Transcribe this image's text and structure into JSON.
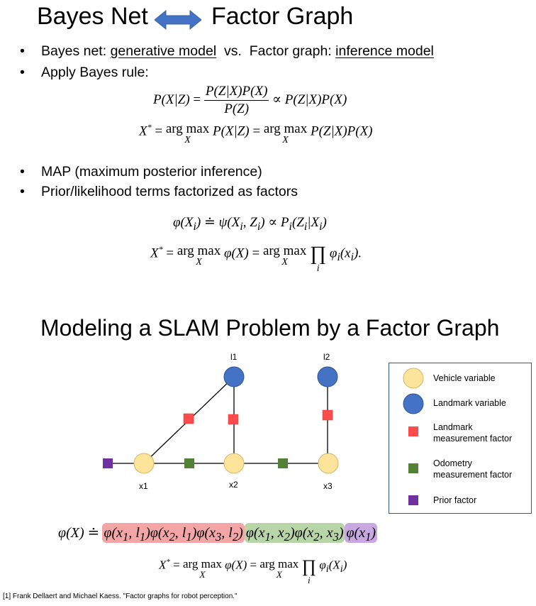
{
  "top": {
    "title_left": "Bayes Net",
    "title_right": "Factor Graph",
    "bullet1_prefix": "Bayes net: ",
    "bullet1_u1": "generative model",
    "bullet1_mid": "  vs.  Factor graph: ",
    "bullet1_u2": "inference model",
    "bullet2": "Apply Bayes rule:",
    "bullet3": "MAP (maximum posterior inference)",
    "bullet4": "Prior/likelihood terms factorized as factors"
  },
  "bottom": {
    "title": "Modeling a SLAM Problem by a Factor Graph"
  },
  "graph": {
    "labels": {
      "l1": "l1",
      "l2": "l2",
      "x1": "x1",
      "x2": "x2",
      "x3": "x3"
    }
  },
  "legend": {
    "vehicle": "Vehicle variable",
    "landmark": "Landmark variable",
    "landmark_factor_1": "Landmark",
    "landmark_factor_2": "measurement factor",
    "odometry_factor_1": "Odometry",
    "odometry_factor_2": "measurement factor",
    "prior": "Prior factor"
  },
  "colors": {
    "vehicle": "#fde49b",
    "vehicle_border": "#d8b567",
    "landmark": "#4472c4",
    "landmark_border": "#2f5597",
    "landmark_factor": "#ff4b4b",
    "odometry_factor": "#538135",
    "prior_factor": "#7030a0",
    "arrow": "#4472c4",
    "hl_red": "#f4a6a6",
    "hl_green": "#b7d5a6",
    "hl_purple": "#c9a8e2"
  },
  "reference": "[1] Frank Dellaert and Michael Kaess. \"Factor graphs for robot perception.\""
}
